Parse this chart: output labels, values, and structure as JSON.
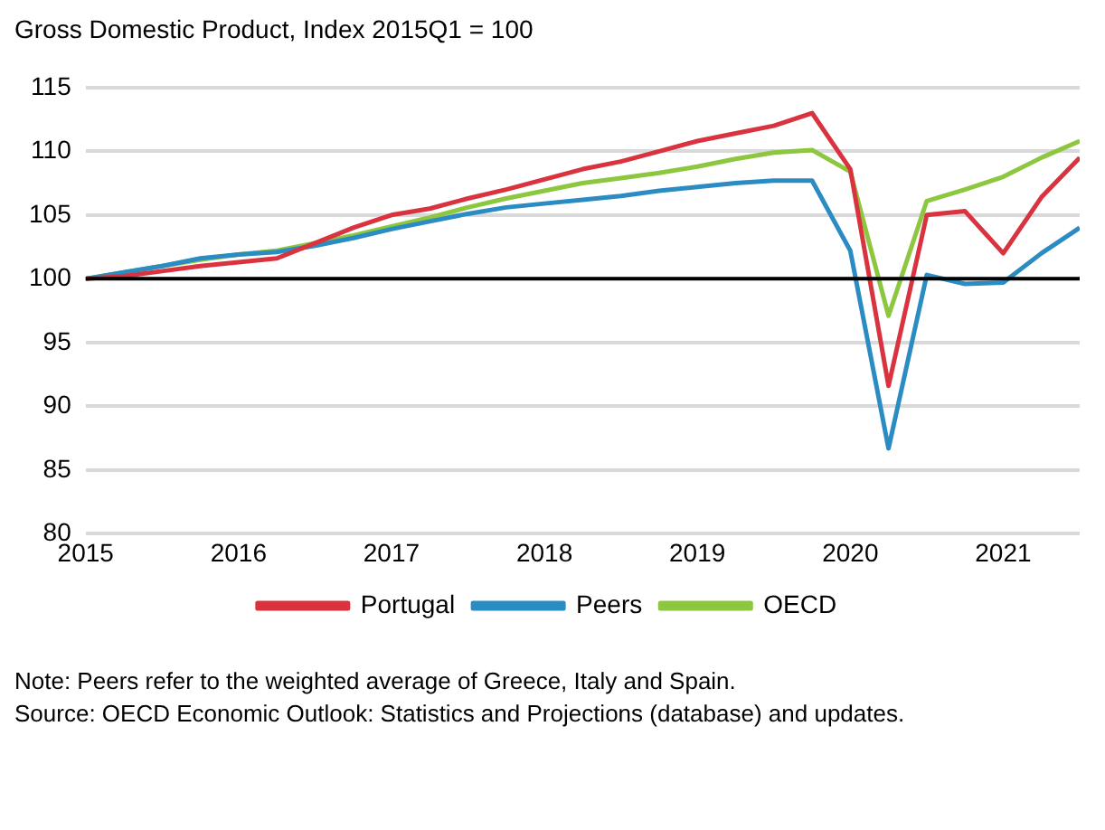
{
  "chart_data": {
    "type": "line",
    "title": "Gross Domestic Product, Index 2015Q1 = 100",
    "annotations": [
      "Note: Peers refer to the weighted average of Greece, Italy and Spain.",
      "Source: OECD Economic Outlook: Statistics and Projections (database) and updates."
    ],
    "x": [
      2015,
      2015.25,
      2015.5,
      2015.75,
      2016,
      2016.25,
      2016.5,
      2016.75,
      2017,
      2017.25,
      2017.5,
      2017.75,
      2018,
      2018.25,
      2018.5,
      2018.75,
      2019,
      2019.25,
      2019.5,
      2019.75,
      2020,
      2020.25,
      2020.5,
      2020.75,
      2021,
      2021.25,
      2021.5
    ],
    "series": [
      {
        "name": "Portugal",
        "color": "#d9333f",
        "values": [
          100,
          100.2,
          100.6,
          101.0,
          101.3,
          101.6,
          102.8,
          104.0,
          105.0,
          105.5,
          106.3,
          107.0,
          107.8,
          108.6,
          109.2,
          110.0,
          110.8,
          111.4,
          112.0,
          113.0,
          108.6,
          91.6,
          105.0,
          105.3,
          102.0,
          106.4,
          109.5
        ]
      },
      {
        "name": "Peers",
        "color": "#2b8cc4",
        "values": [
          100,
          100.5,
          101.0,
          101.6,
          101.9,
          102.1,
          102.6,
          103.2,
          103.9,
          104.5,
          105.1,
          105.6,
          105.9,
          106.2,
          106.5,
          106.9,
          107.2,
          107.5,
          107.7,
          107.7,
          102.2,
          86.7,
          100.3,
          99.6,
          99.7,
          102.0,
          104.0
        ]
      },
      {
        "name": "OECD",
        "color": "#8dc63f",
        "values": [
          100,
          100.5,
          101.0,
          101.5,
          101.9,
          102.2,
          102.8,
          103.4,
          104.1,
          104.8,
          105.6,
          106.3,
          106.9,
          107.5,
          107.9,
          108.3,
          108.8,
          109.4,
          109.9,
          110.1,
          108.4,
          97.1,
          106.1,
          107.0,
          108.0,
          109.5,
          110.8
        ]
      }
    ],
    "xlim": [
      2015,
      2021.5
    ],
    "xticks": [
      2015,
      2016,
      2017,
      2018,
      2019,
      2020,
      2021
    ],
    "ylim": [
      80,
      115
    ],
    "yticks": [
      80,
      85,
      90,
      95,
      100,
      105,
      110,
      115
    ],
    "ref_lines": [
      {
        "axis": "y",
        "value": 100,
        "color": "#000000"
      }
    ],
    "grid": "y",
    "legend": "bottom",
    "marker": "none",
    "line_style": "solid"
  }
}
